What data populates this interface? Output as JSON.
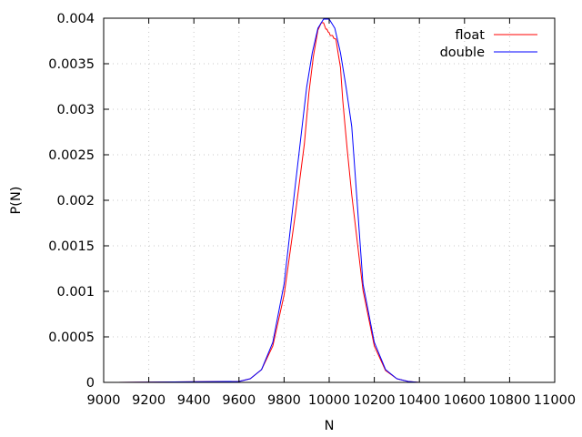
{
  "chart_data": {
    "type": "line",
    "xlabel": "N",
    "ylabel": "P(N)",
    "xlim": [
      9000,
      11000
    ],
    "ylim": [
      0,
      0.004
    ],
    "xticks": [
      "9000",
      "9200",
      "9400",
      "9600",
      "9800",
      "10000",
      "10200",
      "10400",
      "10600",
      "10800",
      "11000"
    ],
    "yticks": [
      "0",
      "0.0005",
      "0.001",
      "0.0015",
      "0.002",
      "0.0025",
      "0.003",
      "0.0035",
      "0.004"
    ],
    "grid": true,
    "legend_position": "top-right",
    "series": [
      {
        "name": "float",
        "color": "#ff0000",
        "x": [
          9060,
          9600,
          9650,
          9700,
          9750,
          9800,
          9850,
          9890,
          9910,
          9930,
          9950,
          9965,
          9975,
          9985,
          9990,
          9995,
          10000,
          10005,
          10010,
          10015,
          10020,
          10030,
          10040,
          10050,
          10060,
          10070,
          10080,
          10100,
          10150,
          10200,
          10250,
          10300,
          10350,
          10400,
          10940
        ],
        "y": [
          0.0,
          1e-05,
          4e-05,
          0.00014,
          0.0004,
          0.00096,
          0.00185,
          0.00262,
          0.00318,
          0.00358,
          0.00387,
          0.00395,
          0.00395,
          0.00388,
          0.00388,
          0.00385,
          0.00384,
          0.00381,
          0.00381,
          0.00381,
          0.00378,
          0.00377,
          0.00361,
          0.00346,
          0.0031,
          0.00282,
          0.00256,
          0.00206,
          0.00101,
          0.0004,
          0.00013,
          4e-05,
          1e-05,
          0.0,
          0.0
        ]
      },
      {
        "name": "double",
        "color": "#0000ff",
        "x": [
          9060,
          9600,
          9650,
          9700,
          9750,
          9800,
          9850,
          9900,
          9925,
          9950,
          9975,
          10000,
          10025,
          10050,
          10075,
          10100,
          10150,
          10200,
          10250,
          10300,
          10350,
          10400,
          10940
        ],
        "y": [
          0.0,
          1e-05,
          4e-05,
          0.00014,
          0.00044,
          0.00108,
          0.00217,
          0.00324,
          0.00362,
          0.00389,
          0.00399,
          0.00399,
          0.00389,
          0.00362,
          0.00324,
          0.00281,
          0.00108,
          0.00044,
          0.00014,
          4e-05,
          1e-05,
          0.0,
          0.0
        ]
      }
    ]
  }
}
